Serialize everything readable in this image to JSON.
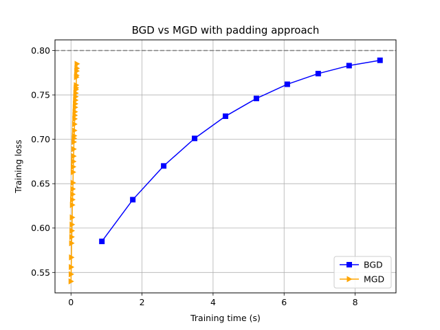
{
  "chart_data": {
    "type": "line",
    "title": "BGD vs MGD with padding approach",
    "xlabel": "Training time (s)",
    "ylabel": "Training loss",
    "xlim": [
      -0.45,
      9.15
    ],
    "ylim": [
      0.527,
      0.812
    ],
    "xticks": [
      0,
      2,
      4,
      6,
      8
    ],
    "yticks": [
      0.55,
      0.6,
      0.65,
      0.7,
      0.75,
      0.8
    ],
    "xtick_labels": [
      "0",
      "2",
      "4",
      "6",
      "8"
    ],
    "ytick_labels": [
      "0.55",
      "0.60",
      "0.65",
      "0.70",
      "0.75",
      "0.80"
    ],
    "grid": true,
    "legend_position": "lower-right",
    "reference_line": {
      "y": 0.8,
      "style": "dashed",
      "color": "#808080"
    },
    "series": [
      {
        "name": "BGD",
        "color": "#0000ff",
        "marker": "square",
        "x": [
          0.87,
          1.74,
          2.61,
          3.48,
          4.35,
          5.22,
          6.09,
          6.96,
          7.83,
          8.7
        ],
        "y": [
          0.585,
          0.632,
          0.67,
          0.701,
          0.726,
          0.746,
          0.762,
          0.774,
          0.783,
          0.789
        ]
      },
      {
        "name": "MGD",
        "color": "#ffa500",
        "marker": "triangle-right",
        "x": [
          0.0,
          0.004,
          0.008,
          0.013,
          0.017,
          0.022,
          0.026,
          0.03,
          0.035,
          0.039,
          0.043,
          0.048,
          0.052,
          0.057,
          0.061,
          0.065,
          0.07,
          0.074,
          0.078,
          0.083,
          0.087,
          0.092,
          0.096,
          0.1,
          0.105,
          0.109,
          0.113,
          0.118,
          0.122,
          0.127,
          0.131,
          0.135,
          0.14,
          0.144,
          0.148,
          0.153,
          0.157,
          0.162,
          0.166,
          0.17
        ],
        "y": [
          0.54,
          0.548,
          0.556,
          0.567,
          0.583,
          0.59,
          0.597,
          0.604,
          0.612,
          0.626,
          0.632,
          0.638,
          0.644,
          0.651,
          0.663,
          0.669,
          0.675,
          0.681,
          0.689,
          0.697,
          0.701,
          0.704,
          0.71,
          0.717,
          0.723,
          0.727,
          0.731,
          0.736,
          0.74,
          0.744,
          0.748,
          0.752,
          0.756,
          0.758,
          0.761,
          0.77,
          0.772,
          0.777,
          0.78,
          0.785
        ]
      }
    ]
  }
}
